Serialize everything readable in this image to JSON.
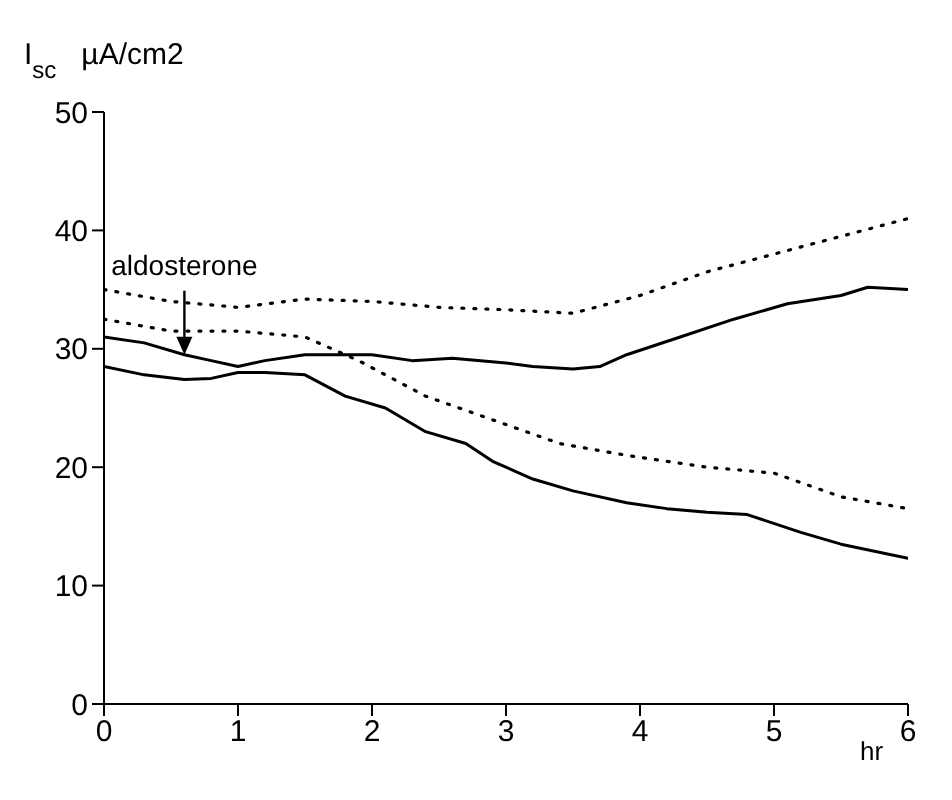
{
  "chart_data": {
    "type": "line",
    "ylabel": "I$_{sc}$  µA/cm2",
    "xlabel": "hr",
    "xlim": [
      0,
      6
    ],
    "xticks": [
      0,
      1,
      2,
      3,
      4,
      5,
      6
    ],
    "ylim": [
      0,
      50
    ],
    "yticks": [
      0,
      10,
      20,
      30,
      40,
      50
    ],
    "grid": false,
    "marker": "none",
    "annotations": [
      {
        "text": "aldosterone",
        "x": 0.6,
        "y": 29.5
      }
    ],
    "series": [
      {
        "color": "#000000",
        "line_style": "solid",
        "x": [
          0,
          0.3,
          0.6,
          0.8,
          1.0,
          1.2,
          1.5,
          2.0,
          2.3,
          2.6,
          3.0,
          3.2,
          3.5,
          3.7,
          3.9,
          4.3,
          4.7,
          5.1,
          5.5,
          5.7,
          6
        ],
        "values": [
          31,
          30.5,
          29.5,
          29,
          28.5,
          29,
          29.5,
          29.5,
          29,
          29.2,
          28.8,
          28.5,
          28.3,
          28.5,
          29.5,
          31,
          32.5,
          33.8,
          34.5,
          35.2,
          35
        ]
      },
      {
        "color": "#000000",
        "line_style": "solid",
        "x": [
          0,
          0.3,
          0.6,
          0.8,
          1.0,
          1.2,
          1.5,
          1.8,
          2.1,
          2.4,
          2.7,
          2.9,
          3.2,
          3.5,
          3.9,
          4.2,
          4.5,
          4.8,
          5.2,
          5.5,
          6
        ],
        "values": [
          28.5,
          27.8,
          27.4,
          27.5,
          28,
          28,
          27.8,
          26,
          25,
          23,
          22,
          20.5,
          19,
          18,
          17,
          16.5,
          16.2,
          16,
          14.5,
          13.5,
          12.3
        ]
      },
      {
        "color": "#000000",
        "line_style": "dotted",
        "x": [
          0,
          0.5,
          1.0,
          1.5,
          2.0,
          2.5,
          3.0,
          3.5,
          4.0,
          4.5,
          5.0,
          5.5,
          6
        ],
        "values": [
          35,
          34,
          33.5,
          34.2,
          34,
          33.5,
          33.3,
          33,
          34.5,
          36.5,
          38,
          39.5,
          41
        ]
      },
      {
        "color": "#000000",
        "line_style": "dotted",
        "x": [
          0,
          0.5,
          1.0,
          1.5,
          1.9,
          2.4,
          2.9,
          3.4,
          3.9,
          4.5,
          5.0,
          5.5,
          6
        ],
        "values": [
          32.5,
          31.5,
          31.5,
          31,
          29,
          26,
          24,
          22,
          21,
          20,
          19.5,
          17.5,
          16.5
        ]
      }
    ]
  }
}
